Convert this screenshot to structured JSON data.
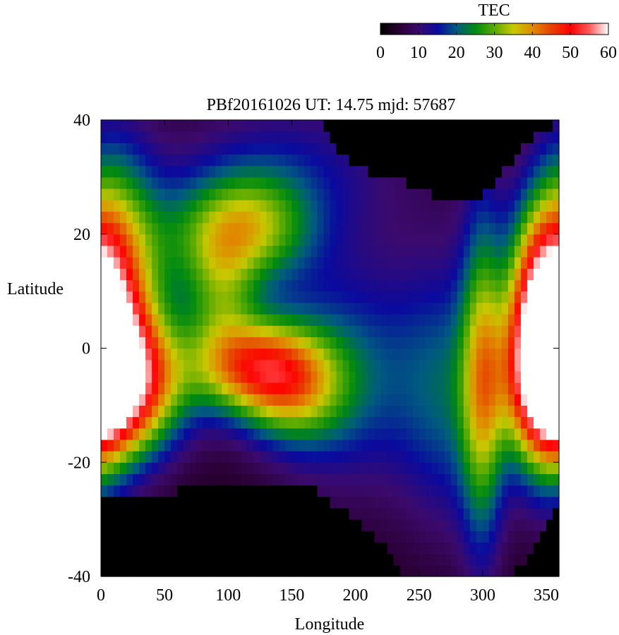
{
  "chart_data": {
    "type": "heatmap",
    "title": "PBf20161026  UT: 14.75  mjd: 57687",
    "xlabel": "Longitude",
    "ylabel": "Latitude",
    "xlim": [
      0,
      360
    ],
    "ylim": [
      -40,
      40
    ],
    "x_ticks": [
      0,
      50,
      100,
      150,
      200,
      250,
      300,
      350
    ],
    "y_ticks": [
      -40,
      -20,
      0,
      20,
      40
    ],
    "colorbar": {
      "label": "TEC",
      "range": [
        0,
        60
      ],
      "ticks": [
        0,
        10,
        20,
        30,
        40,
        50,
        60
      ],
      "colors": [
        "#000000",
        "#2a0033",
        "#3b0a6e",
        "#0a0a9e",
        "#005a80",
        "#008a10",
        "#5aaa00",
        "#c8c800",
        "#e08a00",
        "#e84000",
        "#ff0000",
        "#ff5a5a",
        "#ffffff"
      ]
    },
    "cell_size_deg": {
      "lon": 5,
      "lat": 2
    },
    "field_model": {
      "background": 3,
      "components": [
        {
          "lon": 15,
          "lat": -6,
          "amp": 48,
          "sigma_lon": 35,
          "sigma_lat": 9
        },
        {
          "lon": 10,
          "lat": 12,
          "amp": 34,
          "sigma_lon": 25,
          "sigma_lat": 16
        },
        {
          "lon": 60,
          "lat": 18,
          "amp": 8,
          "sigma_lon": 30,
          "sigma_lat": 8
        },
        {
          "lon": 115,
          "lat": 21,
          "amp": 26,
          "sigma_lon": 35,
          "sigma_lat": 7
        },
        {
          "lon": 120,
          "lat": -3,
          "amp": 33,
          "sigma_lon": 35,
          "sigma_lat": 6
        },
        {
          "lon": 150,
          "lat": -8,
          "amp": 18,
          "sigma_lon": 30,
          "sigma_lat": 7
        },
        {
          "lon": 95,
          "lat": 9,
          "amp": 16,
          "sigma_lon": 20,
          "sigma_lat": 8
        },
        {
          "lon": 195,
          "lat": -4,
          "amp": 15,
          "sigma_lon": 45,
          "sigma_lat": 15
        },
        {
          "lon": 275,
          "lat": -8,
          "amp": 14,
          "sigma_lon": 30,
          "sigma_lat": 18
        },
        {
          "lon": 300,
          "lat": -5,
          "amp": 23,
          "sigma_lon": 12,
          "sigma_lat": 22
        },
        {
          "lon": 350,
          "lat": 0,
          "amp": 44,
          "sigma_lon": 20,
          "sigma_lat": 15
        },
        {
          "lon": 340,
          "lat": 10,
          "amp": 10,
          "sigma_lon": 15,
          "sigma_lat": 10
        },
        {
          "lon": 150,
          "lat": 32,
          "amp": 10,
          "sigma_lon": 70,
          "sigma_lat": 10
        }
      ],
      "no_data_regions": [
        {
          "edge": "bottom",
          "lon": [
            0,
            60,
            90,
            140,
            170,
            200,
            230,
            240,
            255,
            260
          ],
          "lat": [
            -26,
            -25,
            -23,
            -23,
            -25,
            -30,
            -36,
            -40,
            -40,
            -40
          ]
        },
        {
          "edge": "bottom",
          "lon": [
            310,
            320,
            330,
            340,
            350,
            360
          ],
          "lat": [
            -40,
            -40,
            -38,
            -34,
            -30,
            -27
          ]
        },
        {
          "edge": "top",
          "lon": [
            170,
            180,
            200,
            220,
            240,
            260,
            280,
            300,
            310,
            325,
            340,
            360
          ],
          "lat": [
            40,
            36,
            32,
            30,
            29,
            27,
            26,
            27,
            29,
            33,
            37,
            40
          ]
        }
      ]
    }
  }
}
